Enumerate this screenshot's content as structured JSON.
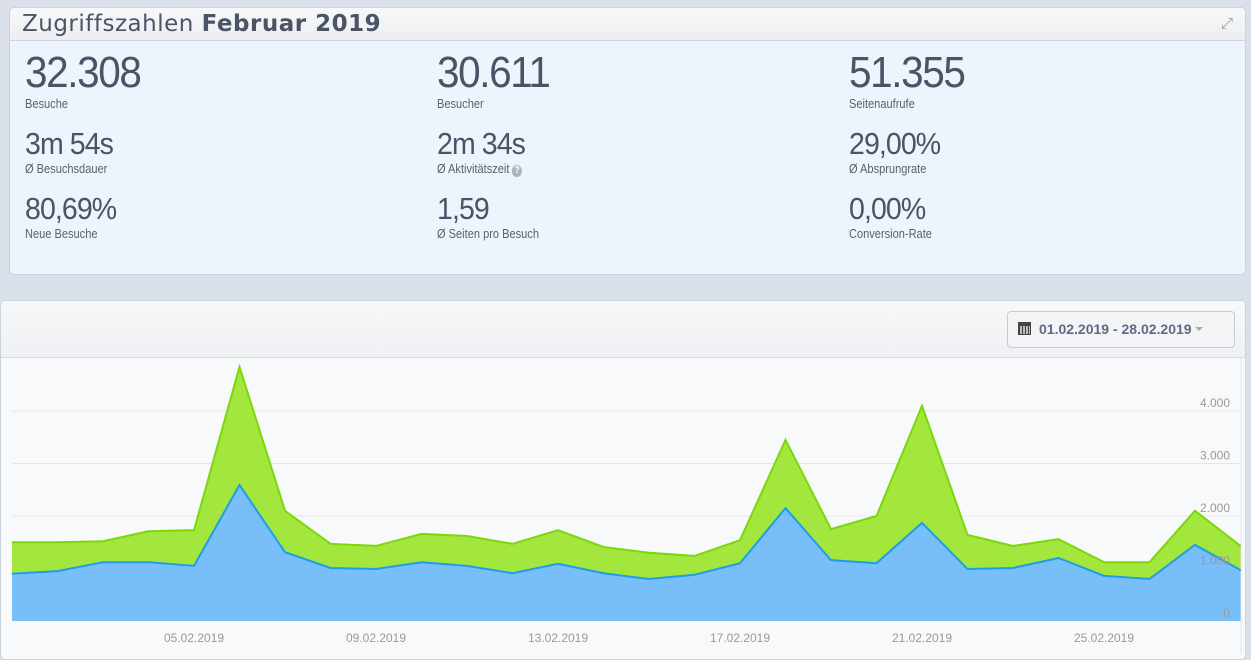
{
  "header": {
    "title_prefix": "Zugriffszahlen",
    "title_period": "Februar 2019",
    "expand_icon": "expand-icon"
  },
  "stats": [
    {
      "value": "32.308",
      "label": "Besuche"
    },
    {
      "value": "30.611",
      "label": "Besucher"
    },
    {
      "value": "51.355",
      "label": "Seitenaufrufe"
    },
    {
      "value": "3m 54s",
      "label": "Ø Besuchsdauer"
    },
    {
      "value": "2m 34s",
      "label": "Ø Aktivitätszeit",
      "help": "?"
    },
    {
      "value": "29,00%",
      "label": "Ø Absprungrate"
    },
    {
      "value": "80,69%",
      "label": "Neue Besuche"
    },
    {
      "value": "1,59",
      "label": "Ø Seiten pro Besuch"
    },
    {
      "value": "0,00%",
      "label": "Conversion-Rate"
    }
  ],
  "date_range": {
    "label": "01.02.2019 - 28.02.2019",
    "icon": "calendar-icon"
  },
  "chart_data": {
    "type": "area",
    "stacked": true,
    "x": [
      "01.02.2019",
      "02.02.2019",
      "03.02.2019",
      "04.02.2019",
      "05.02.2019",
      "06.02.2019",
      "07.02.2019",
      "08.02.2019",
      "09.02.2019",
      "10.02.2019",
      "11.02.2019",
      "12.02.2019",
      "13.02.2019",
      "14.02.2019",
      "15.02.2019",
      "16.02.2019",
      "17.02.2019",
      "18.02.2019",
      "19.02.2019",
      "20.02.2019",
      "21.02.2019",
      "22.02.2019",
      "23.02.2019",
      "24.02.2019",
      "25.02.2019",
      "26.02.2019",
      "27.02.2019",
      "28.02.2019"
    ],
    "x_tick_labels": [
      "05.02.2019",
      "09.02.2019",
      "13.02.2019",
      "17.02.2019",
      "21.02.2019",
      "25.02.2019"
    ],
    "y_tick_labels": [
      "0",
      "1.000",
      "2.000",
      "3.000",
      "4.000"
    ],
    "ylim": [
      0,
      4900
    ],
    "series": [
      {
        "color": "#78bffa",
        "line": "#1d9ee8",
        "values": [
          900,
          950,
          1120,
          1120,
          1050,
          2590,
          1310,
          1010,
          990,
          1120,
          1050,
          910,
          1090,
          910,
          800,
          880,
          1100,
          2150,
          1160,
          1100,
          1870,
          990,
          1010,
          1200,
          860,
          800,
          1450,
          970
        ]
      },
      {
        "color": "#a3e63e",
        "line": "#7ad80a",
        "values": [
          600,
          550,
          400,
          590,
          680,
          2250,
          790,
          460,
          440,
          540,
          570,
          560,
          640,
          500,
          500,
          360,
          440,
          1300,
          590,
          900,
          2230,
          650,
          420,
          360,
          260,
          320,
          650,
          460
        ]
      }
    ],
    "grid": true
  }
}
